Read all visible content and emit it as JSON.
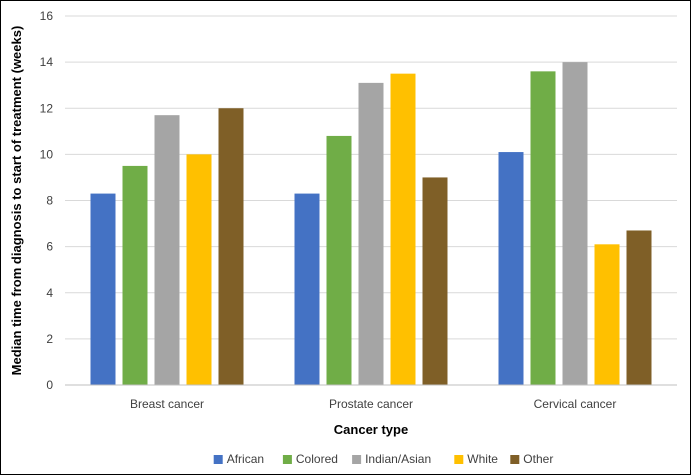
{
  "chart_data": {
    "type": "bar",
    "categories": [
      "Breast cancer",
      "Prostate cancer",
      "Cervical cancer"
    ],
    "series": [
      {
        "name": "African",
        "color": "#4472C4",
        "values": [
          8.3,
          8.3,
          10.1
        ]
      },
      {
        "name": "Colored",
        "color": "#70AD47",
        "values": [
          9.5,
          10.8,
          13.6
        ]
      },
      {
        "name": "Indian/Asian",
        "color": "#A5A5A5",
        "values": [
          11.7,
          13.1,
          14.0
        ]
      },
      {
        "name": "White",
        "color": "#FFC000",
        "values": [
          10.0,
          13.5,
          6.1
        ]
      },
      {
        "name": "Other",
        "color": "#7F5F27",
        "values": [
          12.0,
          9.0,
          6.7
        ]
      }
    ],
    "title": "",
    "xlabel": "Cancer type",
    "ylabel": "Median time from diagnosis to start of treatment (weeks)",
    "ylim": [
      0,
      16
    ],
    "yticks": [
      0,
      2,
      4,
      6,
      8,
      10,
      12,
      14,
      16
    ],
    "grid": true,
    "legend_position": "bottom"
  }
}
